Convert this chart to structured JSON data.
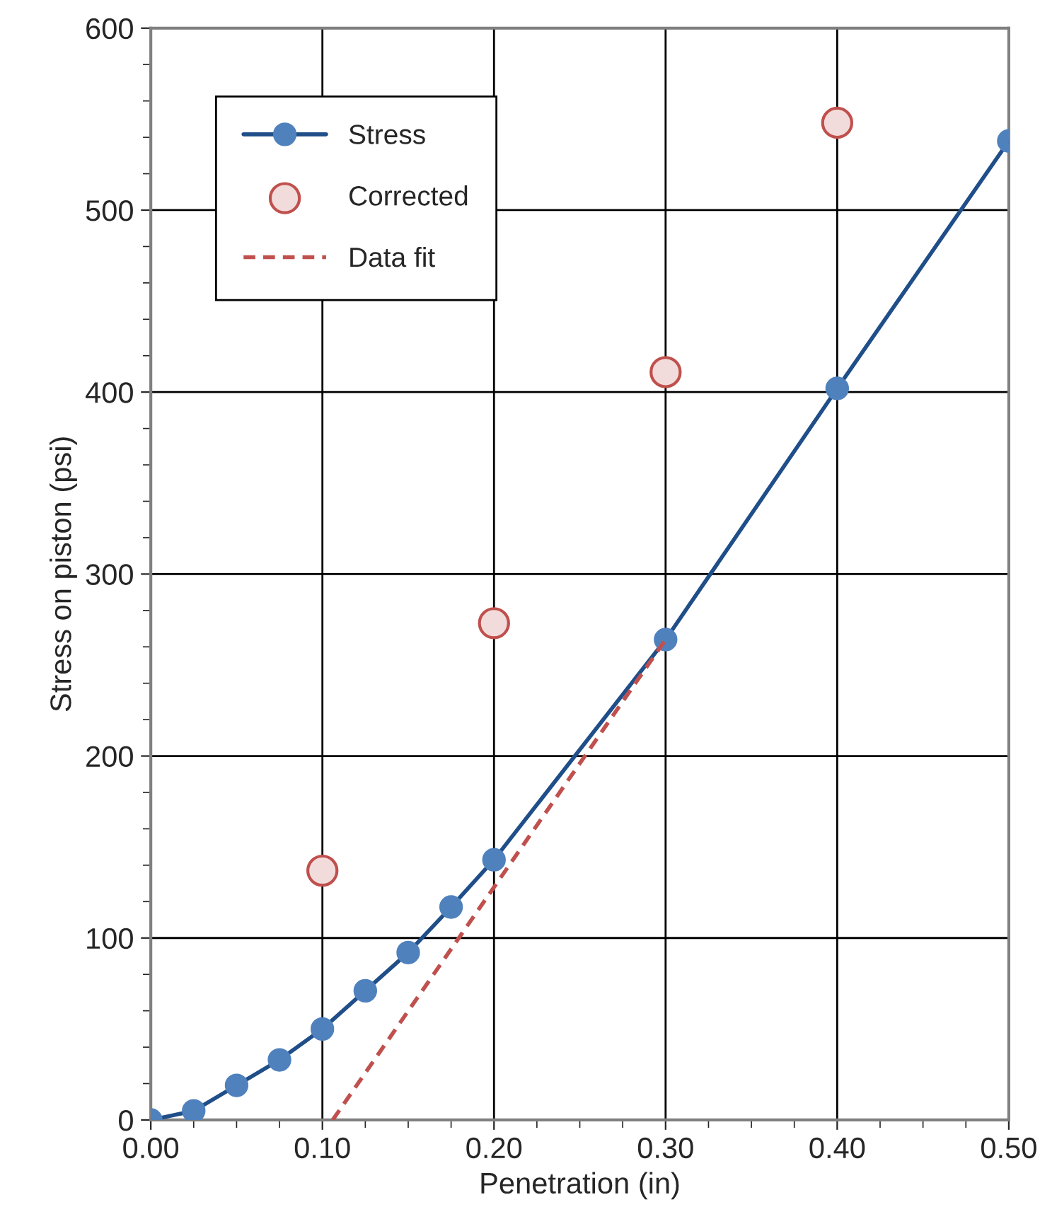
{
  "chart_data": {
    "type": "line",
    "xlabel": "Penetration (in)",
    "ylabel": "Stress on piston (psi)",
    "xlim": [
      0,
      0.5
    ],
    "xticks": [
      {
        "value": 0,
        "label": "0.00"
      },
      {
        "value": 0.1,
        "label": "0.10"
      },
      {
        "value": 0.2,
        "label": "0.20"
      },
      {
        "value": 0.3,
        "label": "0.30"
      },
      {
        "value": 0.4,
        "label": "0.40"
      },
      {
        "value": 0.5,
        "label": "0.50"
      }
    ],
    "ylim": [
      0,
      600
    ],
    "yticks": [
      0,
      100,
      200,
      300,
      400,
      500,
      600
    ],
    "grid": true,
    "legend": "top left",
    "series": [
      {
        "name": "Stress",
        "marker": "circle",
        "line_style": "solid",
        "color": "#1f4e89",
        "x": [
          0,
          0.025,
          0.05,
          0.075,
          0.1,
          0.125,
          0.15,
          0.175,
          0.2,
          0.3,
          0.4,
          0.5
        ],
        "values": [
          0,
          5,
          19,
          33,
          50,
          71,
          92,
          117,
          143,
          264,
          402,
          538
        ]
      },
      {
        "name": "Corrected",
        "type": "scatter",
        "marker": "circle",
        "color": "#c0504d",
        "x": [
          0.1,
          0.2,
          0.3,
          0.4
        ],
        "values": [
          137,
          273,
          411,
          548
        ]
      },
      {
        "name": "Data fit",
        "marker": "none",
        "line_style": "dashed",
        "color": "#c0504d",
        "x": [
          0.106,
          0.3
        ],
        "values": [
          0,
          264
        ]
      }
    ]
  }
}
